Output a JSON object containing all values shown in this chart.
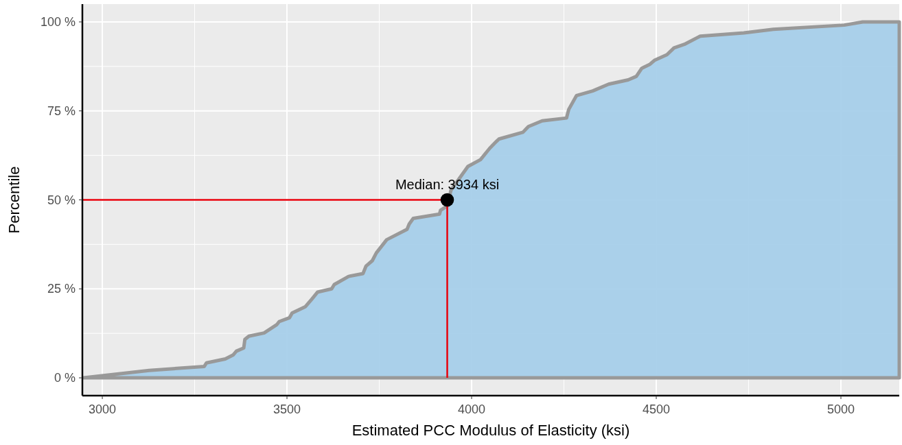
{
  "chart_data": {
    "type": "area",
    "xlabel": "Estimated PCC Modulus of Elasticity (ksi)",
    "ylabel": "Percentile",
    "xlim": [
      2946,
      5158
    ],
    "xticks": [
      3000,
      3500,
      4000,
      4500,
      5000
    ],
    "ylim": [
      -5,
      105
    ],
    "yticks": [
      {
        "value": 0,
        "label": "0 %"
      },
      {
        "value": 25,
        "label": "25 %"
      },
      {
        "value": 50,
        "label": "50 %"
      },
      {
        "value": 75,
        "label": "75 %"
      },
      {
        "value": 100,
        "label": "100 %"
      }
    ],
    "grid": true,
    "series": [
      {
        "color": "#a6cfea",
        "x": [
          2949,
          3127,
          3276,
          3282,
          3333,
          3354,
          3363,
          3383,
          3386,
          3397,
          3438,
          3472,
          3479,
          3507,
          3514,
          3550,
          3568,
          3583,
          3621,
          3628,
          3667,
          3706,
          3714,
          3731,
          3742,
          3770,
          3825,
          3831,
          3842,
          3913,
          3916,
          3934,
          3944,
          3990,
          4024,
          4049,
          4067,
          4074,
          4139,
          4154,
          4191,
          4257,
          4263,
          4284,
          4328,
          4371,
          4424,
          4446,
          4461,
          4483,
          4495,
          4529,
          4548,
          4576,
          4619,
          4737,
          4817,
          5009,
          5059,
          5158
        ],
        "values": [
          0,
          2.1,
          3.2,
          4.2,
          5.3,
          6.4,
          7.5,
          8.4,
          10.8,
          11.7,
          12.6,
          14.9,
          15.8,
          16.9,
          18.2,
          20.0,
          22.2,
          24.1,
          25.0,
          26.2,
          28.5,
          29.3,
          31.4,
          32.9,
          35.1,
          38.8,
          41.7,
          43.2,
          44.8,
          46.0,
          47.1,
          48.3,
          52.7,
          59.4,
          61.3,
          64.5,
          66.4,
          67.1,
          69.0,
          70.6,
          72.2,
          73.0,
          75.4,
          79.3,
          80.6,
          82.5,
          83.7,
          84.7,
          87.0,
          88.1,
          89.2,
          90.8,
          92.7,
          93.7,
          96.0,
          96.9,
          97.9,
          99.1,
          100,
          100
        ]
      },
      {
        "type": "scatter",
        "color": "#000000",
        "x": [
          3934
        ],
        "values": [
          50
        ],
        "marker": "circle"
      }
    ],
    "ref_lines": [
      {
        "axis": "y",
        "value": 50,
        "color": "#e8000b"
      },
      {
        "axis": "x",
        "value": 3934,
        "color": "#e8000b"
      }
    ],
    "annotations": [
      {
        "text": "Median: 3934 ksi",
        "x": 3934,
        "y": 50
      }
    ]
  }
}
